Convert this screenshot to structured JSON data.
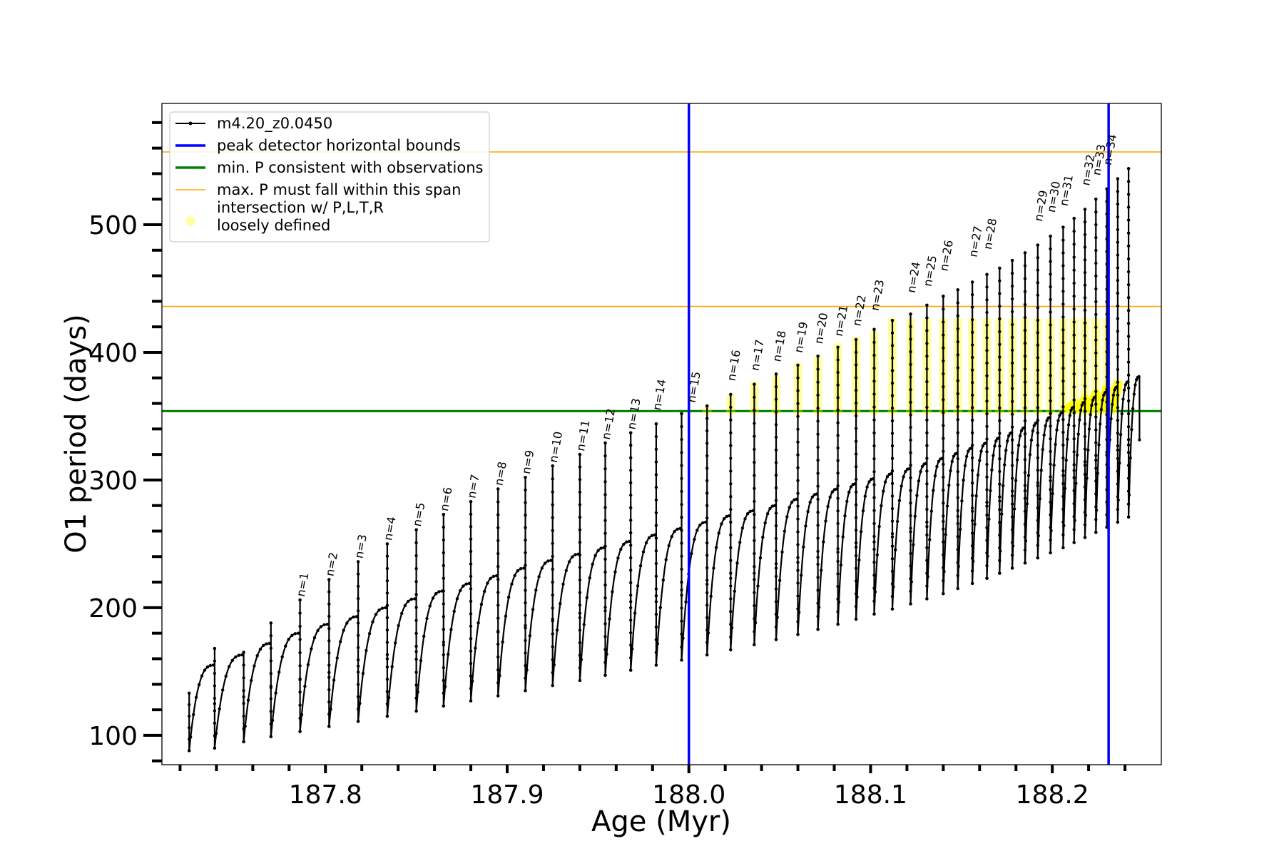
{
  "chart_data": {
    "type": "line",
    "title": "",
    "xlabel": "Age (Myr)",
    "ylabel": "O1 period (days)",
    "xlim": [
      187.71,
      188.26
    ],
    "ylim": [
      77,
      595
    ],
    "x_ticks": [
      187.8,
      187.9,
      188.0,
      188.1,
      188.2
    ],
    "y_ticks": [
      100,
      200,
      300,
      400,
      500
    ],
    "grid": false,
    "legend_position": "top-left",
    "colors": {
      "series": "#000000",
      "vertical_bounds": "#0000ff",
      "min_period": "#008000",
      "max_period_span": "#ffa500",
      "intersection": "#ffff00"
    },
    "series": [
      {
        "name": "m4.20_z0.0450",
        "cycles": [
          {
            "start": 187.725,
            "end": 187.739,
            "trough": 88,
            "peak": 155,
            "spike": 133
          },
          {
            "start": 187.739,
            "end": 187.755,
            "trough": 90,
            "peak": 163,
            "spike": 168
          },
          {
            "start": 187.755,
            "end": 187.77,
            "trough": 95,
            "peak": 172,
            "spike": 165
          },
          {
            "start": 187.77,
            "end": 187.786,
            "trough": 99,
            "peak": 180,
            "spike": 188
          },
          {
            "start": 187.786,
            "end": 187.802,
            "trough": 103,
            "peak": 187,
            "spike": 206
          },
          {
            "start": 187.802,
            "end": 187.818,
            "trough": 107,
            "peak": 193,
            "spike": 222
          },
          {
            "start": 187.818,
            "end": 187.834,
            "trough": 111,
            "peak": 200,
            "spike": 236
          },
          {
            "start": 187.834,
            "end": 187.85,
            "trough": 115,
            "peak": 207,
            "spike": 250
          },
          {
            "start": 187.85,
            "end": 187.865,
            "trough": 119,
            "peak": 213,
            "spike": 261
          },
          {
            "start": 187.865,
            "end": 187.88,
            "trough": 123,
            "peak": 219,
            "spike": 273
          },
          {
            "start": 187.88,
            "end": 187.895,
            "trough": 127,
            "peak": 225,
            "spike": 283
          },
          {
            "start": 187.895,
            "end": 187.91,
            "trough": 131,
            "peak": 231,
            "spike": 293
          },
          {
            "start": 187.91,
            "end": 187.925,
            "trough": 135,
            "peak": 237,
            "spike": 302
          },
          {
            "start": 187.925,
            "end": 187.94,
            "trough": 139,
            "peak": 242,
            "spike": 311
          },
          {
            "start": 187.94,
            "end": 187.954,
            "trough": 143,
            "peak": 247,
            "spike": 320
          },
          {
            "start": 187.954,
            "end": 187.968,
            "trough": 147,
            "peak": 252,
            "spike": 329
          },
          {
            "start": 187.968,
            "end": 187.982,
            "trough": 151,
            "peak": 257,
            "spike": 337
          },
          {
            "start": 187.982,
            "end": 187.996,
            "trough": 155,
            "peak": 262,
            "spike": 344
          },
          {
            "start": 187.996,
            "end": 188.01,
            "trough": 159,
            "peak": 267,
            "spike": 352
          },
          {
            "start": 188.01,
            "end": 188.023,
            "trough": 163,
            "peak": 272,
            "spike": 358
          },
          {
            "start": 188.023,
            "end": 188.036,
            "trough": 167,
            "peak": 276,
            "spike": 367
          },
          {
            "start": 188.036,
            "end": 188.048,
            "trough": 171,
            "peak": 280,
            "spike": 375
          },
          {
            "start": 188.048,
            "end": 188.06,
            "trough": 175,
            "peak": 285,
            "spike": 383
          },
          {
            "start": 188.06,
            "end": 188.071,
            "trough": 179,
            "peak": 289,
            "spike": 390
          },
          {
            "start": 188.071,
            "end": 188.082,
            "trough": 183,
            "peak": 293,
            "spike": 397
          },
          {
            "start": 188.082,
            "end": 188.092,
            "trough": 187,
            "peak": 297,
            "spike": 404
          },
          {
            "start": 188.092,
            "end": 188.102,
            "trough": 191,
            "peak": 301,
            "spike": 410
          },
          {
            "start": 188.102,
            "end": 188.112,
            "trough": 195,
            "peak": 305,
            "spike": 418
          },
          {
            "start": 188.112,
            "end": 188.122,
            "trough": 199,
            "peak": 309,
            "spike": 425
          },
          {
            "start": 188.122,
            "end": 188.131,
            "trough": 203,
            "peak": 313,
            "spike": 430
          },
          {
            "start": 188.131,
            "end": 188.14,
            "trough": 207,
            "peak": 317,
            "spike": 437
          },
          {
            "start": 188.14,
            "end": 188.148,
            "trough": 211,
            "peak": 321,
            "spike": 444
          },
          {
            "start": 188.148,
            "end": 188.156,
            "trough": 215,
            "peak": 325,
            "spike": 449
          },
          {
            "start": 188.156,
            "end": 188.164,
            "trough": 219,
            "peak": 329,
            "spike": 455
          },
          {
            "start": 188.164,
            "end": 188.171,
            "trough": 223,
            "peak": 333,
            "spike": 461
          },
          {
            "start": 188.171,
            "end": 188.178,
            "trough": 227,
            "peak": 337,
            "spike": 466
          },
          {
            "start": 188.178,
            "end": 188.185,
            "trough": 231,
            "peak": 341,
            "spike": 472
          },
          {
            "start": 188.185,
            "end": 188.192,
            "trough": 235,
            "peak": 345,
            "spike": 478
          },
          {
            "start": 188.192,
            "end": 188.199,
            "trough": 239,
            "peak": 349,
            "spike": 484
          },
          {
            "start": 188.199,
            "end": 188.206,
            "trough": 243,
            "peak": 353,
            "spike": 491
          },
          {
            "start": 188.206,
            "end": 188.212,
            "trough": 247,
            "peak": 357,
            "spike": 498
          },
          {
            "start": 188.212,
            "end": 188.218,
            "trough": 251,
            "peak": 361,
            "spike": 505
          },
          {
            "start": 188.218,
            "end": 188.224,
            "trough": 255,
            "peak": 365,
            "spike": 512
          },
          {
            "start": 188.224,
            "end": 188.23,
            "trough": 259,
            "peak": 369,
            "spike": 520
          },
          {
            "start": 188.23,
            "end": 188.236,
            "trough": 263,
            "peak": 373,
            "spike": 528
          },
          {
            "start": 188.236,
            "end": 188.242,
            "trough": 267,
            "peak": 377,
            "spike": 536
          },
          {
            "start": 188.242,
            "end": 188.248,
            "trough": 271,
            "peak": 381,
            "spike": 544
          }
        ]
      },
      {
        "name": "peak detector horizontal bounds",
        "kind": "vline",
        "x": [
          188.0,
          188.231
        ]
      },
      {
        "name": "min. P consistent with observations",
        "kind": "hline",
        "y": 354
      },
      {
        "name": "max. P must fall within this span",
        "kind": "hline",
        "y": [
          436,
          557
        ]
      },
      {
        "name": "intersection w/ P,L,T,R\nloosely defined",
        "kind": "scatter",
        "y_range": [
          354,
          425
        ],
        "x_range": [
          188.0,
          188.235
        ]
      }
    ],
    "peak_labels": [
      {
        "label": "n=1",
        "x": 187.786,
        "y": 206
      },
      {
        "label": "n=2",
        "x": 187.802,
        "y": 222
      },
      {
        "label": "n=3",
        "x": 187.818,
        "y": 236
      },
      {
        "label": "n=4",
        "x": 187.834,
        "y": 250
      },
      {
        "label": "n=5",
        "x": 187.85,
        "y": 261
      },
      {
        "label": "n=6",
        "x": 187.865,
        "y": 273
      },
      {
        "label": "n=7",
        "x": 187.88,
        "y": 283
      },
      {
        "label": "n=8",
        "x": 187.895,
        "y": 293
      },
      {
        "label": "n=9",
        "x": 187.91,
        "y": 302
      },
      {
        "label": "n=10",
        "x": 187.925,
        "y": 311
      },
      {
        "label": "n=11",
        "x": 187.94,
        "y": 320
      },
      {
        "label": "n=12",
        "x": 187.954,
        "y": 329
      },
      {
        "label": "n=13",
        "x": 187.968,
        "y": 337
      },
      {
        "label": "n=14",
        "x": 187.982,
        "y": 352
      },
      {
        "label": "n=15",
        "x": 188.001,
        "y": 358
      },
      {
        "label": "n=16",
        "x": 188.023,
        "y": 375
      },
      {
        "label": "n=17",
        "x": 188.036,
        "y": 383
      },
      {
        "label": "n=18",
        "x": 188.048,
        "y": 390
      },
      {
        "label": "n=19",
        "x": 188.06,
        "y": 397
      },
      {
        "label": "n=20",
        "x": 188.071,
        "y": 404
      },
      {
        "label": "n=21",
        "x": 188.082,
        "y": 410
      },
      {
        "label": "n=22",
        "x": 188.092,
        "y": 418
      },
      {
        "label": "n=23",
        "x": 188.102,
        "y": 430
      },
      {
        "label": "n=24",
        "x": 188.122,
        "y": 444
      },
      {
        "label": "n=25",
        "x": 188.131,
        "y": 449
      },
      {
        "label": "n=26",
        "x": 188.14,
        "y": 461
      },
      {
        "label": "n=27",
        "x": 188.156,
        "y": 472
      },
      {
        "label": "n=28",
        "x": 188.164,
        "y": 478
      },
      {
        "label": "n=29",
        "x": 188.192,
        "y": 500
      },
      {
        "label": "n=30",
        "x": 188.199,
        "y": 507
      },
      {
        "label": "n=31",
        "x": 188.206,
        "y": 512
      },
      {
        "label": "n=32",
        "x": 188.218,
        "y": 528
      },
      {
        "label": "n=33",
        "x": 188.224,
        "y": 536
      },
      {
        "label": "n=34",
        "x": 188.23,
        "y": 544
      }
    ]
  }
}
